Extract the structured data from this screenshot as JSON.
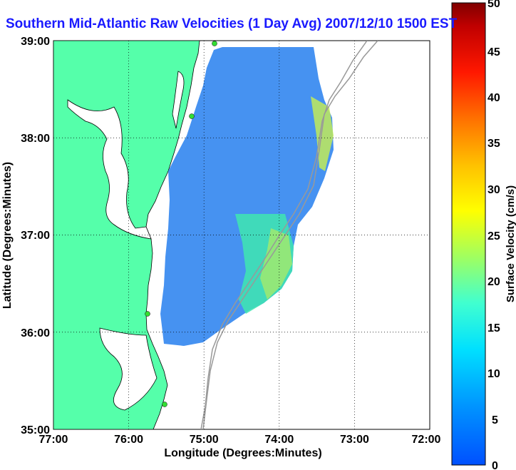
{
  "title": "Southern Mid-Atlantic Raw Velocities (1 Day Avg) 2007/12/10 1500 EST",
  "map": {
    "xlabel": "Longitude (Degrees:Minutes)",
    "ylabel": "Latitude (Degrees:Minutes)",
    "x_ticks": [
      "77:00",
      "76:00",
      "75:00",
      "74:00",
      "73:00",
      "72:00"
    ],
    "y_ticks": [
      "39:00",
      "38:00",
      "37:00",
      "36:00",
      "35:00"
    ],
    "lon_range": [
      -77,
      -72
    ],
    "lat_range": [
      35,
      39
    ],
    "grid": "dotted",
    "land_color": "#55ffaa",
    "station_color": "#33dd33"
  },
  "colorbar": {
    "label": "Surface Velocity (cm/s)",
    "range": [
      0,
      50
    ],
    "ticks": [
      "50",
      "45",
      "40",
      "35",
      "30",
      "25",
      "20",
      "15",
      "10",
      "5",
      "0"
    ],
    "colormap": "jet"
  }
}
